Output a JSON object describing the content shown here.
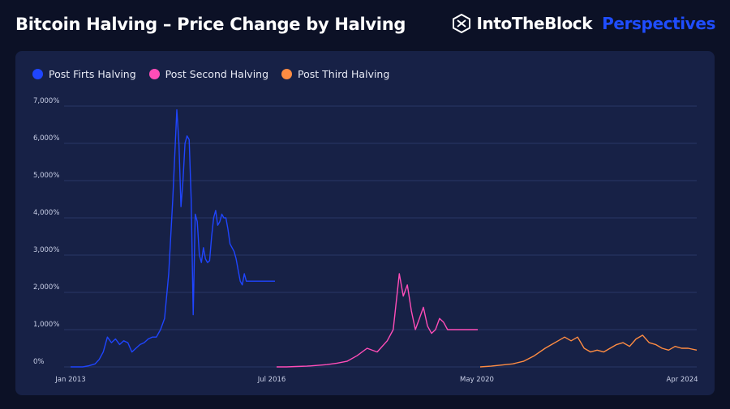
{
  "header": {
    "title": "Bitcoin Halving – Price Change by Halving",
    "brand_name": "IntoTheBlock",
    "brand_sub": "Perspectives"
  },
  "colors": {
    "background": "#0c1126",
    "card": "#172146",
    "series_first": "#1f45ff",
    "series_second": "#ff4db8",
    "series_third": "#ff8c42",
    "brand_accent": "#1f4dff"
  },
  "chart_data": {
    "type": "line",
    "title": "Bitcoin Halving – Price Change by Halving",
    "xlabel": "",
    "ylabel": "",
    "ylim": [
      0,
      7000
    ],
    "y_ticks": [
      0,
      1000,
      2000,
      3000,
      4000,
      5000,
      6000,
      7000
    ],
    "y_tick_labels": [
      "0%",
      "1,000%",
      "2,000%",
      "3,000%",
      "4,000%",
      "5,000%",
      "6,000%",
      "7,000%"
    ],
    "x_tick_labels": [
      "Jan 2013",
      "Jul 2016",
      "May 2020",
      "Apr 2024"
    ],
    "grid": true,
    "legend_position": "top-left",
    "series": [
      {
        "name": "Post Firts Halving",
        "color": "#1f45ff",
        "x": [
          0,
          0.03,
          0.06,
          0.09,
          0.12,
          0.14,
          0.16,
          0.18,
          0.2,
          0.22,
          0.24,
          0.26,
          0.28,
          0.3,
          0.32,
          0.34,
          0.36,
          0.38,
          0.4,
          0.42,
          0.44,
          0.46,
          0.48,
          0.5,
          0.52,
          0.53,
          0.54,
          0.55,
          0.56,
          0.57,
          0.58,
          0.59,
          0.6,
          0.61,
          0.62,
          0.63,
          0.64,
          0.65,
          0.66,
          0.67,
          0.68,
          0.69,
          0.7,
          0.71,
          0.72,
          0.73,
          0.74,
          0.75,
          0.76,
          0.77,
          0.78,
          0.79,
          0.8,
          0.81,
          0.82,
          0.83,
          0.84,
          0.85,
          0.86,
          0.87,
          0.88,
          0.89,
          0.9,
          0.91,
          0.92,
          0.93,
          0.94,
          0.95,
          0.96,
          0.97,
          0.98,
          0.99,
          1.0
        ],
        "values": [
          0,
          0,
          0,
          30,
          80,
          200,
          400,
          800,
          650,
          750,
          600,
          700,
          650,
          400,
          500,
          600,
          650,
          750,
          800,
          800,
          1000,
          1300,
          2500,
          4500,
          6900,
          6000,
          4300,
          5000,
          6000,
          6200,
          6100,
          4500,
          1400,
          4100,
          3900,
          3000,
          2800,
          3200,
          2900,
          2800,
          2850,
          3500,
          4000,
          4200,
          3800,
          3900,
          4100,
          4000,
          4000,
          3700,
          3300,
          3200,
          3100,
          2900,
          2600,
          2300,
          2200,
          2500,
          2300,
          2300,
          2300,
          2300,
          2300,
          2300,
          2300,
          2300,
          2300,
          2300,
          2300,
          2300,
          2300,
          2300,
          2300
        ]
      },
      {
        "name": "Post Second Halving",
        "color": "#ff4db8",
        "x": [
          0,
          0.05,
          0.1,
          0.15,
          0.2,
          0.25,
          0.3,
          0.35,
          0.4,
          0.45,
          0.5,
          0.55,
          0.58,
          0.61,
          0.63,
          0.65,
          0.67,
          0.69,
          0.71,
          0.73,
          0.75,
          0.77,
          0.79,
          0.81,
          0.83,
          0.85,
          0.87,
          0.89,
          0.91,
          0.93,
          0.95,
          0.97,
          1.0
        ],
        "values": [
          0,
          0,
          10,
          20,
          40,
          60,
          100,
          150,
          300,
          500,
          400,
          700,
          1000,
          2500,
          1900,
          2200,
          1500,
          1000,
          1300,
          1600,
          1100,
          900,
          1000,
          1300,
          1200,
          1000,
          1000,
          1000,
          1000,
          1000,
          1000,
          1000,
          1000
        ]
      },
      {
        "name": "Post Third Halving",
        "color": "#ff8c42",
        "x": [
          0,
          0.05,
          0.1,
          0.15,
          0.2,
          0.25,
          0.3,
          0.33,
          0.36,
          0.39,
          0.42,
          0.45,
          0.48,
          0.51,
          0.54,
          0.57,
          0.6,
          0.63,
          0.66,
          0.69,
          0.72,
          0.75,
          0.78,
          0.81,
          0.84,
          0.87,
          0.9,
          0.93,
          0.96,
          1.0
        ],
        "values": [
          0,
          20,
          50,
          80,
          150,
          300,
          500,
          600,
          700,
          800,
          700,
          800,
          500,
          400,
          450,
          400,
          500,
          600,
          650,
          550,
          750,
          850,
          650,
          600,
          500,
          450,
          550,
          500,
          500,
          450
        ]
      }
    ]
  }
}
